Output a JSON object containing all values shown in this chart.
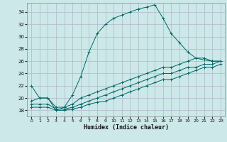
{
  "xlabel": "Humidex (Indice chaleur)",
  "xlim": [
    -0.5,
    23.5
  ],
  "ylim": [
    17.0,
    35.5
  ],
  "yticks": [
    18,
    20,
    22,
    24,
    26,
    28,
    30,
    32,
    34
  ],
  "xticks": [
    0,
    1,
    2,
    3,
    4,
    5,
    6,
    7,
    8,
    9,
    10,
    11,
    12,
    13,
    14,
    15,
    16,
    17,
    18,
    19,
    20,
    21,
    22,
    23
  ],
  "bg_color": "#cce8e8",
  "grid_color": "#b0b8c8",
  "line_color": "#006868",
  "lines": [
    {
      "x": [
        0,
        1,
        2,
        3,
        4,
        5,
        6,
        7,
        8,
        9,
        10,
        11,
        12,
        13,
        14,
        15,
        16,
        17,
        18,
        19,
        20,
        21,
        22,
        23
      ],
      "y": [
        22,
        20,
        20,
        18,
        18.5,
        20.5,
        23.5,
        27.5,
        30.5,
        32,
        33,
        33.5,
        34,
        34.5,
        34.8,
        35.2,
        33,
        30.5,
        29,
        27.5,
        26.5,
        26.2,
        26,
        26
      ]
    },
    {
      "x": [
        0,
        1,
        2,
        3,
        4,
        5,
        6,
        7,
        8,
        9,
        10,
        11,
        12,
        13,
        14,
        15,
        16,
        17,
        18,
        19,
        20,
        21,
        22,
        23
      ],
      "y": [
        19.5,
        20,
        20,
        18.5,
        18.5,
        19,
        20,
        20.5,
        21,
        21.5,
        22,
        22.5,
        23,
        23.5,
        24,
        24.5,
        25,
        25,
        25.5,
        26,
        26.5,
        26.5,
        26,
        26
      ]
    },
    {
      "x": [
        0,
        1,
        2,
        3,
        4,
        5,
        6,
        7,
        8,
        9,
        10,
        11,
        12,
        13,
        14,
        15,
        16,
        17,
        18,
        19,
        20,
        21,
        22,
        23
      ],
      "y": [
        19,
        19,
        19,
        18.2,
        18.2,
        18.5,
        19,
        19.5,
        20,
        20.5,
        21,
        21.5,
        22,
        22.5,
        23,
        23.5,
        24,
        24,
        24.5,
        25,
        25,
        25.5,
        25.5,
        26
      ]
    },
    {
      "x": [
        0,
        1,
        2,
        3,
        4,
        5,
        6,
        7,
        8,
        9,
        10,
        11,
        12,
        13,
        14,
        15,
        16,
        17,
        18,
        19,
        20,
        21,
        22,
        23
      ],
      "y": [
        18.5,
        18.5,
        18.5,
        18,
        18,
        18.2,
        18.5,
        19,
        19.3,
        19.5,
        20,
        20.5,
        21,
        21.5,
        22,
        22.5,
        23,
        23,
        23.5,
        24,
        24.5,
        25,
        25,
        25.5
      ]
    }
  ]
}
